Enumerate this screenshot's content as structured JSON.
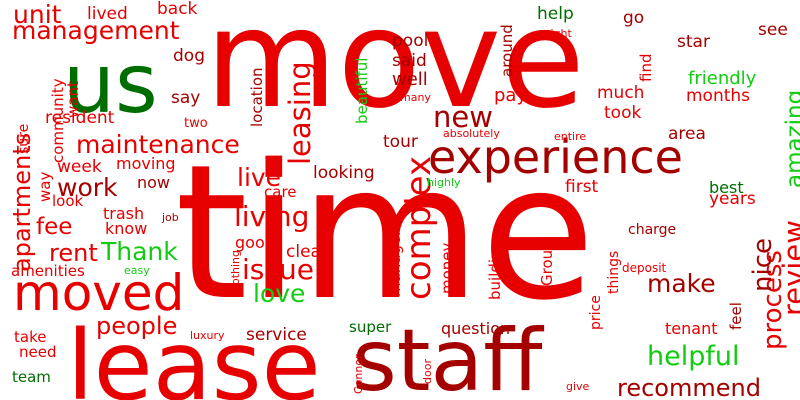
{
  "colors": {
    "red": "#e60000",
    "dark_red": "#a50000",
    "green": "#006d00",
    "light_green": "#11cc11"
  },
  "words": [
    {
      "text": "move",
      "color": "red"
    },
    {
      "text": "time",
      "color": "red"
    },
    {
      "text": "lease",
      "color": "red"
    },
    {
      "text": "staff",
      "color": "dark_red"
    },
    {
      "text": "us",
      "color": "green"
    },
    {
      "text": "experience",
      "color": "dark_red"
    },
    {
      "text": "moved",
      "color": "red"
    },
    {
      "text": "complex",
      "color": "red"
    },
    {
      "text": "new",
      "color": "dark_red"
    },
    {
      "text": "maintenance",
      "color": "red"
    },
    {
      "text": "leasing",
      "color": "red"
    },
    {
      "text": "management",
      "color": "red"
    },
    {
      "text": "apartments",
      "color": "red"
    },
    {
      "text": "living",
      "color": "red"
    },
    {
      "text": "issue",
      "color": "red"
    },
    {
      "text": "live",
      "color": "red"
    },
    {
      "text": "work",
      "color": "dark_red"
    },
    {
      "text": "rent",
      "color": "red"
    },
    {
      "text": "fee",
      "color": "red"
    },
    {
      "text": "Thank",
      "color": "light_green"
    },
    {
      "text": "love",
      "color": "light_green"
    },
    {
      "text": "people",
      "color": "red"
    },
    {
      "text": "make",
      "color": "dark_red"
    },
    {
      "text": "helpful",
      "color": "light_green"
    },
    {
      "text": "recommend",
      "color": "dark_red"
    },
    {
      "text": "review",
      "color": "red"
    },
    {
      "text": "process",
      "color": "red"
    },
    {
      "text": "nice",
      "color": "dark_red"
    },
    {
      "text": "amazing",
      "color": "light_green"
    },
    {
      "text": "unit",
      "color": "red"
    },
    {
      "text": "lived",
      "color": "red"
    },
    {
      "text": "back",
      "color": "red"
    },
    {
      "text": "go",
      "color": "dark_red"
    },
    {
      "text": "help",
      "color": "green"
    },
    {
      "text": "star",
      "color": "dark_red"
    },
    {
      "text": "see",
      "color": "dark_red"
    },
    {
      "text": "pool",
      "color": "dark_red"
    },
    {
      "text": "said",
      "color": "dark_red"
    },
    {
      "text": "well",
      "color": "dark_red"
    },
    {
      "text": "around",
      "color": "dark_red"
    },
    {
      "text": "find",
      "color": "red"
    },
    {
      "text": "friendly",
      "color": "light_green"
    },
    {
      "text": "months",
      "color": "red"
    },
    {
      "text": "much",
      "color": "red"
    },
    {
      "text": "took",
      "color": "red"
    },
    {
      "text": "pay",
      "color": "red"
    },
    {
      "text": "area",
      "color": "dark_red"
    },
    {
      "text": "dog",
      "color": "dark_red"
    },
    {
      "text": "say",
      "color": "dark_red"
    },
    {
      "text": "location",
      "color": "dark_red"
    },
    {
      "text": "resident",
      "color": "red"
    },
    {
      "text": "want",
      "color": "red"
    },
    {
      "text": "community",
      "color": "red"
    },
    {
      "text": "sure",
      "color": "red"
    },
    {
      "text": "two",
      "color": "red"
    },
    {
      "text": "beautiful",
      "color": "light_green"
    },
    {
      "text": "tour",
      "color": "dark_red"
    },
    {
      "text": "first",
      "color": "red"
    },
    {
      "text": "best",
      "color": "green"
    },
    {
      "text": "years",
      "color": "red"
    },
    {
      "text": "week",
      "color": "red"
    },
    {
      "text": "moving",
      "color": "red"
    },
    {
      "text": "now",
      "color": "dark_red"
    },
    {
      "text": "looking",
      "color": "dark_red"
    },
    {
      "text": "care",
      "color": "red"
    },
    {
      "text": "way",
      "color": "red"
    },
    {
      "text": "look",
      "color": "red"
    },
    {
      "text": "trash",
      "color": "red"
    },
    {
      "text": "know",
      "color": "red"
    },
    {
      "text": "job",
      "color": "dark_red"
    },
    {
      "text": "good",
      "color": "red"
    },
    {
      "text": "clean",
      "color": "red"
    },
    {
      "text": "nothing",
      "color": "red"
    },
    {
      "text": "manager",
      "color": "red"
    },
    {
      "text": "money",
      "color": "red"
    },
    {
      "text": "building",
      "color": "red"
    },
    {
      "text": "price",
      "color": "red"
    },
    {
      "text": "things",
      "color": "red"
    },
    {
      "text": "Group",
      "color": "red"
    },
    {
      "text": "charge",
      "color": "dark_red"
    },
    {
      "text": "deposit",
      "color": "red"
    },
    {
      "text": "amenities",
      "color": "red"
    },
    {
      "text": "easy",
      "color": "light_green"
    },
    {
      "text": "take",
      "color": "red"
    },
    {
      "text": "need",
      "color": "red"
    },
    {
      "text": "team",
      "color": "green"
    },
    {
      "text": "luxury",
      "color": "red"
    },
    {
      "text": "service",
      "color": "dark_red"
    },
    {
      "text": "super",
      "color": "green"
    },
    {
      "text": "question",
      "color": "dark_red"
    },
    {
      "text": "tenant",
      "color": "red"
    },
    {
      "text": "feel",
      "color": "dark_red"
    },
    {
      "text": "Connor",
      "color": "red"
    },
    {
      "text": "door",
      "color": "red"
    },
    {
      "text": "give",
      "color": "red"
    },
    {
      "text": "right",
      "color": "red"
    },
    {
      "text": "many",
      "color": "red"
    },
    {
      "text": "absolutely",
      "color": "red"
    },
    {
      "text": "entire",
      "color": "red"
    },
    {
      "text": "highly",
      "color": "light_green"
    }
  ]
}
